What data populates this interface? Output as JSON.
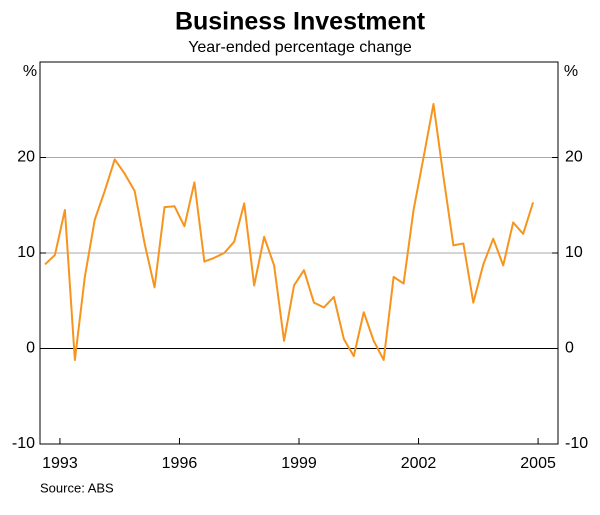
{
  "chart_data": {
    "type": "line",
    "title": "Business Investment",
    "subtitle": "Year-ended percentage change",
    "ylabel": "%",
    "y2label": "%",
    "source": "Source: ABS",
    "x": [
      1992.625,
      1992.875,
      1993.125,
      1993.375,
      1993.625,
      1993.875,
      1994.125,
      1994.375,
      1994.625,
      1994.875,
      1995.125,
      1995.375,
      1995.625,
      1995.875,
      1996.125,
      1996.375,
      1996.625,
      1996.875,
      1997.125,
      1997.375,
      1997.625,
      1997.875,
      1998.125,
      1998.375,
      1998.625,
      1998.875,
      1999.125,
      1999.375,
      1999.625,
      1999.875,
      2000.125,
      2000.375,
      2000.625,
      2000.875,
      2001.125,
      2001.375,
      2001.625,
      2001.875,
      2002.125,
      2002.375,
      2002.625,
      2002.875,
      2003.125,
      2003.375,
      2003.625,
      2003.875,
      2004.125,
      2004.375,
      2004.625,
      2004.875
    ],
    "series": [
      {
        "color": "#f7941d",
        "values": [
          8.8,
          9.8,
          14.5,
          -1.2,
          7.5,
          13.5,
          16.5,
          19.8,
          18.3,
          16.5,
          11,
          6.4,
          14.8,
          14.9,
          12.8,
          17.4,
          9.1,
          9.5,
          10,
          11.2,
          15.2,
          6.6,
          11.7,
          8.7,
          0.8,
          6.6,
          8.2,
          4.8,
          4.3,
          5.4,
          1,
          -0.8,
          3.8,
          0.8,
          -1.2,
          7.5,
          6.8,
          14.5,
          20,
          25.6,
          18,
          10.8,
          11,
          4.8,
          8.8,
          11.5,
          8.7,
          13.2,
          12,
          15.3
        ]
      }
    ],
    "xlim": [
      1992.5,
      2005.5
    ],
    "xticks": [
      1993,
      1996,
      1999,
      2002,
      2005
    ],
    "ylim": [
      -10,
      30
    ],
    "yticks": [
      -10,
      0,
      10,
      20
    ],
    "y2lim": [
      -10,
      30
    ],
    "y2ticks": [
      -10,
      0,
      10,
      20
    ],
    "grid": true
  }
}
